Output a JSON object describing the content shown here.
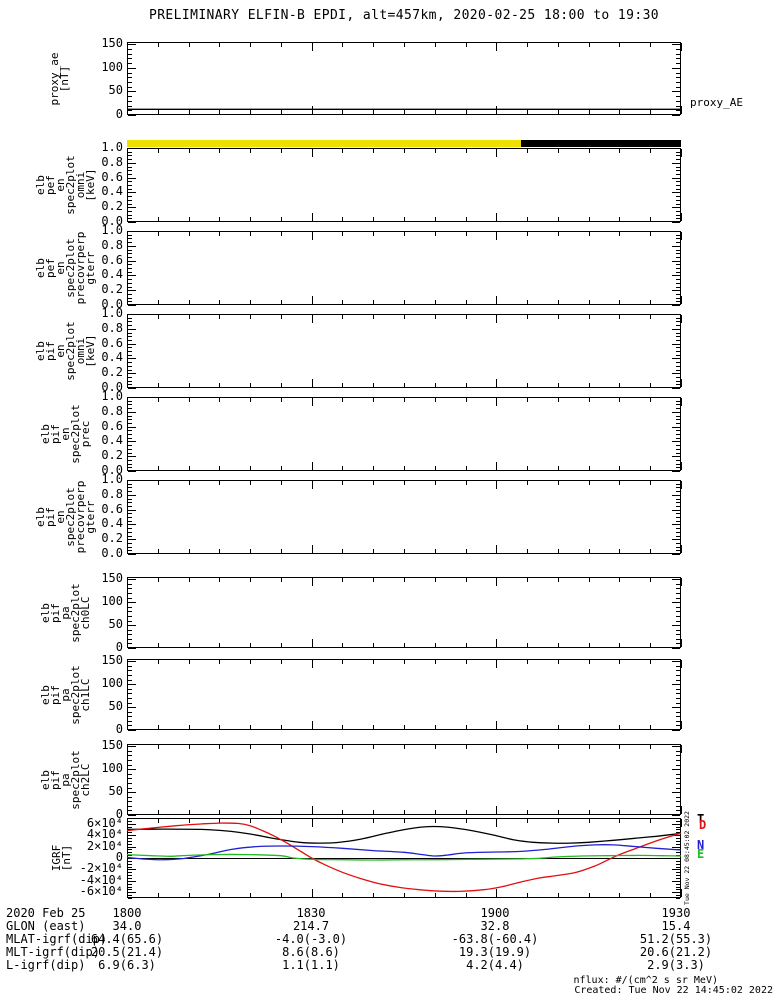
{
  "title": "PRELIMINARY ELFIN-B EPDI, alt=457km, 2020-02-25 18:00 to 19:30",
  "right_label": "proxy_AE",
  "watermark": "Tue Nov 22 08:45:02 2022",
  "footer": {
    "nflux": "nflux: #/(cm^2 s sr MeV)",
    "created": "Created: Tue Nov 22 14:45:02 2022"
  },
  "colors": {
    "background": "#ffffff",
    "axis": "#000000",
    "yellow_bar": "#f0e000",
    "black_bar": "#000000",
    "igrf_total": "#000000",
    "igrf_down": "#e01010",
    "igrf_north": "#2020d0",
    "igrf_east": "#22bb22"
  },
  "time_axis": {
    "date": "2020 Feb 25",
    "start_label": "1800",
    "end_label": "1930",
    "duration_min": 90,
    "major_ticks_min": [
      0,
      30,
      60,
      90
    ],
    "minor_step_min": 5
  },
  "bar_strip": {
    "segments": [
      {
        "from_min": 0,
        "to_min": 64,
        "color": "#f0e000"
      },
      {
        "from_min": 64,
        "to_min": 90,
        "color": "#000000"
      }
    ]
  },
  "bottom_table": {
    "rows": [
      {
        "label": "2020 Feb 25",
        "values": [
          "1800",
          "1830",
          "1900",
          "1930"
        ]
      },
      {
        "label": "GLON (east)",
        "values": [
          "34.0",
          "214.7",
          "32.8",
          "15.4"
        ]
      },
      {
        "label": "MLAT-igrf(dip)",
        "values": [
          "64.4(65.6)",
          "-4.0(-3.0)",
          "-63.8(-60.4)",
          "51.2(55.3)"
        ]
      },
      {
        "label": "MLT-igrf(dip)",
        "values": [
          "20.5(21.4)",
          "8.6(8.6)",
          "19.3(19.9)",
          "20.6(21.2)"
        ]
      },
      {
        "label": "L-igrf(dip)",
        "values": [
          "6.9(6.3)",
          "1.1(1.1)",
          "4.2(4.4)",
          "2.9(3.3)"
        ]
      }
    ]
  },
  "chart_data": [
    {
      "id": "proxy_ae",
      "type": "line",
      "ylabel_lines": [
        "proxy_ae",
        "[nT]"
      ],
      "ylim": [
        0,
        155
      ],
      "y_minor_step": 10,
      "y_major": [
        {
          "v": 0,
          "label": "0"
        },
        {
          "v": 50,
          "label": "50"
        },
        {
          "v": 100,
          "label": "100"
        },
        {
          "v": 150,
          "label": "150"
        }
      ],
      "series": [
        {
          "name": "proxy_AE",
          "color": "#000000",
          "points": [
            [
              0,
              12
            ],
            [
              90,
              12
            ]
          ]
        }
      ]
    },
    {
      "id": "elb_pef_en_spec2plot_omni",
      "type": "spectrogram",
      "empty": true,
      "ylabel_lines": [
        "elb",
        "pef",
        "en",
        "spec2plot",
        "omni",
        "[keV]"
      ],
      "ylim": [
        0,
        1
      ],
      "y_minor_step": 0.05,
      "y_major": [
        {
          "v": 0,
          "label": "0.0"
        },
        {
          "v": 0.2,
          "label": "0.2"
        },
        {
          "v": 0.4,
          "label": "0.4"
        },
        {
          "v": 0.6,
          "label": "0.6"
        },
        {
          "v": 0.8,
          "label": "0.8"
        },
        {
          "v": 1,
          "label": "1.0"
        }
      ],
      "series": []
    },
    {
      "id": "elb_pef_en_spec2plot_precovrperp_gterr",
      "type": "spectrogram",
      "empty": true,
      "ylabel_lines": [
        "elb",
        "pef",
        "en",
        "spec2plot",
        "precovrperp",
        "gterr"
      ],
      "ylim": [
        0,
        1
      ],
      "y_minor_step": 0.05,
      "y_major": [
        {
          "v": 0,
          "label": "0.0"
        },
        {
          "v": 0.2,
          "label": "0.2"
        },
        {
          "v": 0.4,
          "label": "0.4"
        },
        {
          "v": 0.6,
          "label": "0.6"
        },
        {
          "v": 0.8,
          "label": "0.8"
        },
        {
          "v": 1,
          "label": "1.0"
        }
      ],
      "series": []
    },
    {
      "id": "elb_pif_en_spec2plot_omni",
      "type": "spectrogram",
      "empty": true,
      "ylabel_lines": [
        "elb",
        "pif",
        "en",
        "spec2plot",
        "omni",
        "[keV]"
      ],
      "ylim": [
        0,
        1
      ],
      "y_minor_step": 0.05,
      "y_major": [
        {
          "v": 0,
          "label": "0.0"
        },
        {
          "v": 0.2,
          "label": "0.2"
        },
        {
          "v": 0.4,
          "label": "0.4"
        },
        {
          "v": 0.6,
          "label": "0.6"
        },
        {
          "v": 0.8,
          "label": "0.8"
        },
        {
          "v": 1,
          "label": "1.0"
        }
      ],
      "series": []
    },
    {
      "id": "elb_pif_en_spec2plot_prec",
      "type": "spectrogram",
      "empty": true,
      "ylabel_lines": [
        "elb",
        "pif",
        "en",
        "spec2plot",
        "prec"
      ],
      "ylim": [
        0,
        1
      ],
      "y_minor_step": 0.05,
      "y_major": [
        {
          "v": 0,
          "label": "0.0"
        },
        {
          "v": 0.2,
          "label": "0.2"
        },
        {
          "v": 0.4,
          "label": "0.4"
        },
        {
          "v": 0.6,
          "label": "0.6"
        },
        {
          "v": 0.8,
          "label": "0.8"
        },
        {
          "v": 1,
          "label": "1.0"
        }
      ],
      "series": []
    },
    {
      "id": "elb_pif_en_spec2plot_precovrperp_gterr",
      "type": "spectrogram",
      "empty": true,
      "ylabel_lines": [
        "elb",
        "pif",
        "en",
        "spec2plot",
        "precovrperp",
        "gterr"
      ],
      "ylim": [
        0,
        1
      ],
      "y_minor_step": 0.05,
      "y_major": [
        {
          "v": 0,
          "label": "0.0"
        },
        {
          "v": 0.2,
          "label": "0.2"
        },
        {
          "v": 0.4,
          "label": "0.4"
        },
        {
          "v": 0.6,
          "label": "0.6"
        },
        {
          "v": 0.8,
          "label": "0.8"
        },
        {
          "v": 1,
          "label": "1.0"
        }
      ],
      "series": []
    },
    {
      "id": "elb_pif_pa_spec2plot_ch0LC",
      "type": "spectrogram",
      "empty": true,
      "ylabel_lines": [
        "elb",
        "pif",
        "pa",
        "spec2plot",
        "ch0LC"
      ],
      "ylim": [
        0,
        155
      ],
      "y_minor_step": 10,
      "y_major": [
        {
          "v": 0,
          "label": "0"
        },
        {
          "v": 50,
          "label": "50"
        },
        {
          "v": 100,
          "label": "100"
        },
        {
          "v": 150,
          "label": "150"
        }
      ],
      "series": []
    },
    {
      "id": "elb_pif_pa_spec2plot_ch1LC",
      "type": "spectrogram",
      "empty": true,
      "ylabel_lines": [
        "elb",
        "pif",
        "pa",
        "spec2plot",
        "ch1LC"
      ],
      "ylim": [
        0,
        155
      ],
      "y_minor_step": 10,
      "y_major": [
        {
          "v": 0,
          "label": "0"
        },
        {
          "v": 50,
          "label": "50"
        },
        {
          "v": 100,
          "label": "100"
        },
        {
          "v": 150,
          "label": "150"
        }
      ],
      "series": []
    },
    {
      "id": "elb_pif_pa_spec2plot_ch2LC",
      "type": "spectrogram",
      "empty": true,
      "ylabel_lines": [
        "elb",
        "pif",
        "pa",
        "spec2plot",
        "ch2LC"
      ],
      "ylim": [
        0,
        155
      ],
      "y_minor_step": 10,
      "y_major": [
        {
          "v": 0,
          "label": "0"
        },
        {
          "v": 50,
          "label": "50"
        },
        {
          "v": 100,
          "label": "100"
        },
        {
          "v": 150,
          "label": "150"
        }
      ],
      "series": []
    },
    {
      "id": "igrf",
      "type": "line",
      "ylabel_lines": [
        "IGRF",
        "[nT]"
      ],
      "ylim": [
        -70000,
        70000
      ],
      "y_minor_step": 5000,
      "zero_line": true,
      "y_major": [
        {
          "v": 60000,
          "label": "6×10⁴"
        },
        {
          "v": 40000,
          "label": "4×10⁴"
        },
        {
          "v": 20000,
          "label": "2×10⁴"
        },
        {
          "v": 0,
          "label": "0"
        },
        {
          "v": -20000,
          "label": "-2×10⁴"
        },
        {
          "v": -40000,
          "label": "-4×10⁴"
        },
        {
          "v": -60000,
          "label": "-6×10⁴"
        }
      ],
      "legend": [
        {
          "label": "T",
          "color": "#000000"
        },
        {
          "label": "D",
          "color": "#e01010"
        },
        {
          "label": "N",
          "color": "#2020d0"
        },
        {
          "label": "E",
          "color": "#22bb22"
        }
      ],
      "series": [
        {
          "name": "T",
          "color": "#000000",
          "points": [
            [
              0,
              50000
            ],
            [
              6,
              50500
            ],
            [
              12,
              50000
            ],
            [
              16,
              47500
            ],
            [
              20,
              42000
            ],
            [
              24,
              34000
            ],
            [
              28,
              27500
            ],
            [
              31,
              26000
            ],
            [
              34,
              27000
            ],
            [
              38,
              33000
            ],
            [
              42,
              43000
            ],
            [
              46,
              51500
            ],
            [
              49,
              55000
            ],
            [
              52,
              54000
            ],
            [
              56,
              48000
            ],
            [
              60,
              39000
            ],
            [
              63,
              31500
            ],
            [
              66,
              27500
            ],
            [
              69,
              26000
            ],
            [
              72,
              26000
            ],
            [
              75,
              27500
            ],
            [
              79,
              31000
            ],
            [
              83,
              35000
            ],
            [
              86,
              38000
            ],
            [
              90,
              43000
            ]
          ]
        },
        {
          "name": "D",
          "color": "#e01010",
          "points": [
            [
              0,
              48000
            ],
            [
              4,
              52500
            ],
            [
              8,
              56500
            ],
            [
              12,
              59500
            ],
            [
              15,
              61000
            ],
            [
              18,
              60500
            ],
            [
              20,
              56500
            ],
            [
              22,
              48000
            ],
            [
              24,
              38000
            ],
            [
              26,
              26000
            ],
            [
              28,
              13000
            ],
            [
              30,
              0
            ],
            [
              32,
              -11000
            ],
            [
              35,
              -25000
            ],
            [
              38,
              -36000
            ],
            [
              41,
              -45000
            ],
            [
              44,
              -51000
            ],
            [
              47,
              -55000
            ],
            [
              50,
              -57500
            ],
            [
              54,
              -58500
            ],
            [
              58,
              -55500
            ],
            [
              61,
              -50000
            ],
            [
              64,
              -42000
            ],
            [
              67,
              -35000
            ],
            [
              70,
              -30500
            ],
            [
              73,
              -25000
            ],
            [
              76,
              -14000
            ],
            [
              78,
              -4000
            ],
            [
              80,
              6000
            ],
            [
              83,
              18000
            ],
            [
              86,
              30000
            ],
            [
              88,
              37000
            ],
            [
              90,
              43500
            ]
          ]
        },
        {
          "name": "N",
          "color": "#2020d0",
          "points": [
            [
              0,
              1000
            ],
            [
              3,
              -2000
            ],
            [
              6,
              -3000
            ],
            [
              9,
              -1000
            ],
            [
              13,
              6000
            ],
            [
              17,
              15000
            ],
            [
              21,
              20000
            ],
            [
              25,
              21000
            ],
            [
              30,
              20000
            ],
            [
              35,
              17000
            ],
            [
              40,
              13000
            ],
            [
              45,
              10000
            ],
            [
              48,
              6000
            ],
            [
              50,
              3500
            ],
            [
              52,
              5000
            ],
            [
              55,
              9000
            ],
            [
              60,
              10500
            ],
            [
              64,
              11500
            ],
            [
              68,
              15000
            ],
            [
              72,
              20000
            ],
            [
              76,
              23000
            ],
            [
              79,
              23000
            ],
            [
              82,
              20500
            ],
            [
              86,
              17000
            ],
            [
              90,
              14000
            ]
          ]
        },
        {
          "name": "E",
          "color": "#22bb22",
          "points": [
            [
              0,
              6000
            ],
            [
              4,
              4000
            ],
            [
              7,
              3000
            ],
            [
              10,
              4500
            ],
            [
              14,
              6000
            ],
            [
              20,
              6000
            ],
            [
              25,
              4000
            ],
            [
              27,
              0
            ],
            [
              30,
              -2500
            ],
            [
              35,
              -3000
            ],
            [
              40,
              -3500
            ],
            [
              45,
              -3000
            ],
            [
              50,
              -3000
            ],
            [
              55,
              -2500
            ],
            [
              60,
              -2000
            ],
            [
              64,
              -1500
            ],
            [
              67,
              -500
            ],
            [
              70,
              2000
            ],
            [
              74,
              3500
            ],
            [
              78,
              4000
            ],
            [
              83,
              4500
            ],
            [
              87,
              4000
            ],
            [
              90,
              3500
            ]
          ]
        }
      ]
    }
  ]
}
